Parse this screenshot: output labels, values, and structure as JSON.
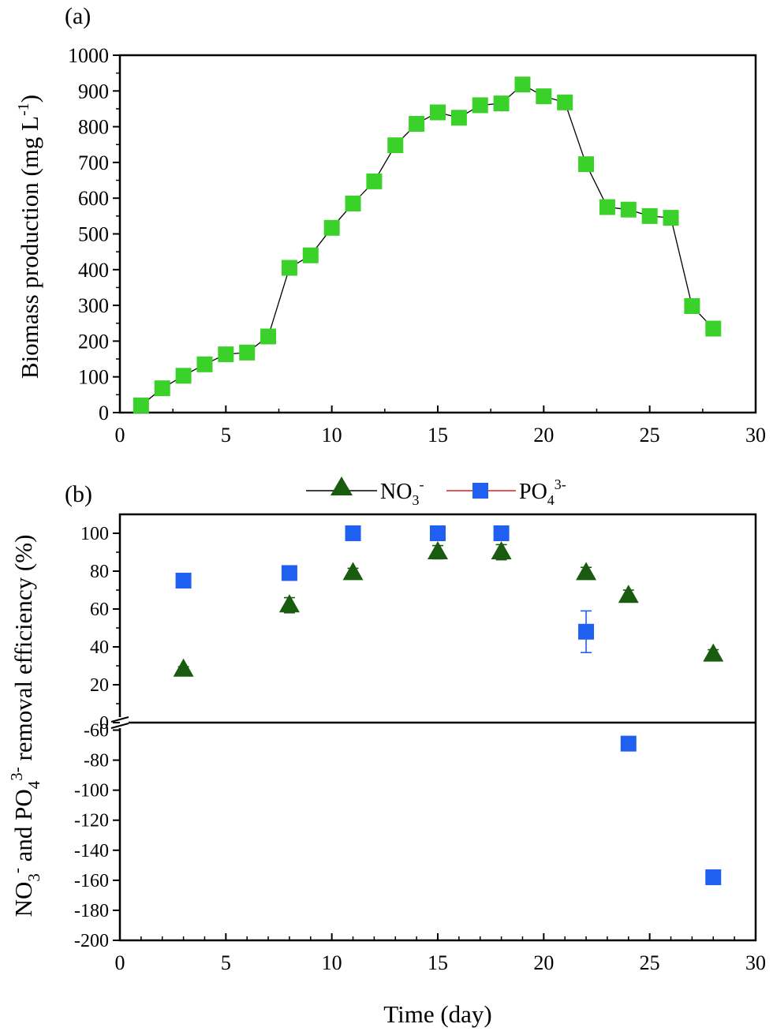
{
  "figure": {
    "panel_a_label": "(a)",
    "panel_b_label": "(b)",
    "colors": {
      "biomass": "#3ad12a",
      "nitrate": "#1a5c0f",
      "phosphate": "#2060f0",
      "legend_line_nitrate": "#000000",
      "legend_line_phosphate": "#e02020"
    }
  },
  "chart_data": [
    {
      "type": "line",
      "title": "(a)",
      "xlabel": "",
      "ylabel": "Biomass production (mg L",
      "ylabel_sup": "-1",
      "ylabel_close": ")",
      "xlim": [
        0,
        30
      ],
      "ylim": [
        0,
        1000
      ],
      "xticks": [
        0,
        5,
        10,
        15,
        20,
        25,
        30
      ],
      "yticks": [
        0,
        100,
        200,
        300,
        400,
        500,
        600,
        700,
        800,
        900,
        1000
      ],
      "series": [
        {
          "name": "Biomass",
          "marker": "square",
          "x": [
            1,
            2,
            3,
            4,
            5,
            6,
            7,
            8,
            9,
            10,
            11,
            12,
            13,
            14,
            15,
            16,
            17,
            18,
            19,
            20,
            21,
            22,
            23,
            24,
            25,
            26,
            27,
            28
          ],
          "y": [
            20,
            68,
            103,
            135,
            163,
            168,
            213,
            405,
            440,
            517,
            585,
            647,
            748,
            808,
            840,
            825,
            860,
            865,
            918,
            885,
            868,
            695,
            575,
            568,
            550,
            545,
            298,
            235
          ]
        }
      ]
    },
    {
      "type": "scatter",
      "title": "(b)",
      "xlabel": "Time (day)",
      "ylabel_parts": {
        "a": "NO",
        "a_sub": "3",
        "a_sup": "-",
        "b": " and PO",
        "b_sub": "4",
        "b_sup": "3-",
        "c": " removal efficiency (%)"
      },
      "xlim": [
        0,
        30
      ],
      "xticks": [
        0,
        5,
        10,
        15,
        20,
        25,
        30
      ],
      "y_break": true,
      "ylim_upper": [
        0,
        110
      ],
      "yticks_upper": [
        0,
        20,
        40,
        60,
        80,
        100
      ],
      "ylim_lower": [
        -200,
        -55
      ],
      "yticks_lower": [
        -60,
        -80,
        -100,
        -120,
        -140,
        -160,
        -180,
        -200
      ],
      "legend": {
        "nitrate": {
          "base": "NO",
          "sub": "3",
          "sup": "-"
        },
        "phosphate": {
          "base": "PO",
          "sub": "4",
          "sup": "3-"
        }
      },
      "series": [
        {
          "name": "NO3-",
          "marker": "triangle",
          "x": [
            3,
            8,
            11,
            15,
            18,
            22,
            24,
            28
          ],
          "y": [
            28,
            62,
            79,
            90,
            90,
            79,
            67,
            36
          ],
          "err": [
            1.5,
            4,
            2.5,
            3.5,
            4,
            3,
            3,
            2.5
          ]
        },
        {
          "name": "PO43-",
          "marker": "square",
          "x": [
            3,
            8,
            11,
            15,
            18,
            22,
            24,
            28
          ],
          "y": [
            75,
            79,
            100,
            100,
            100,
            48,
            -69,
            -158
          ],
          "err": [
            3,
            1,
            3.5,
            0.5,
            0.5,
            11,
            1,
            4.5
          ]
        }
      ]
    }
  ]
}
